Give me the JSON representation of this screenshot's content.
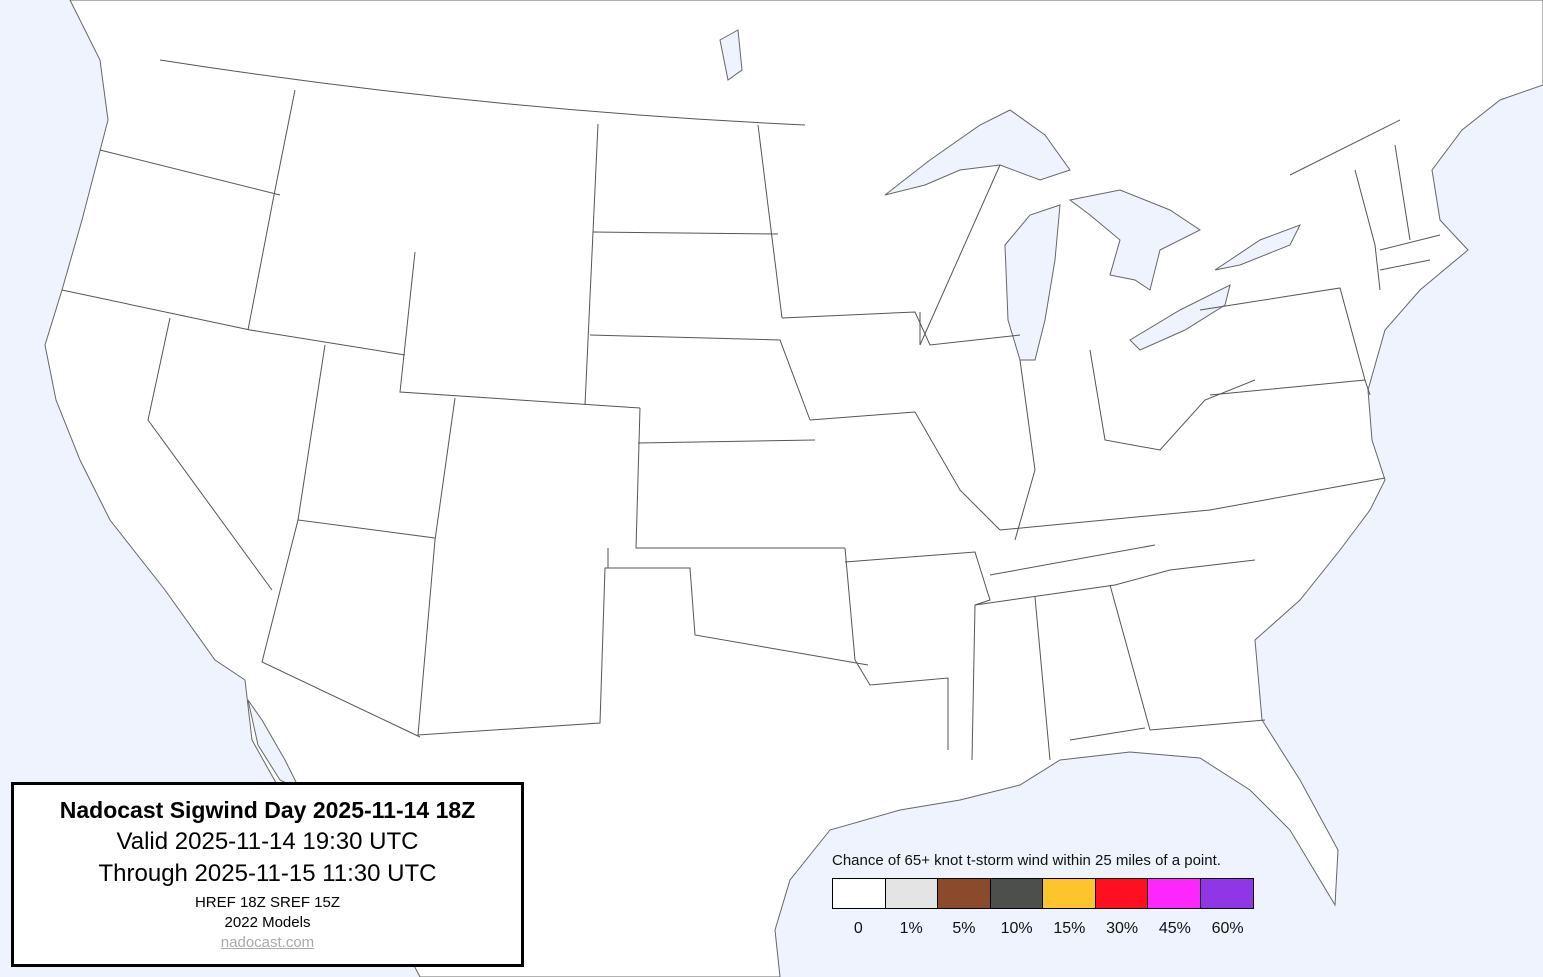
{
  "map": {
    "land_color": "#ffffff",
    "water_color": "#eef3fe",
    "border_color": "#555555"
  },
  "info": {
    "title": "Nadocast Sigwind Day 2025-11-14 18Z",
    "valid": "Valid 2025-11-14 19:30 UTC",
    "through": "Through 2025-11-15 11:30 UTC",
    "models": "HREF 18Z SREF 15Z",
    "model_version": "2022 Models",
    "site": "nadocast.com"
  },
  "legend": {
    "caption": "Chance of 65+ knot t-storm wind within 25 miles of a point.",
    "items": [
      {
        "label": "0",
        "color": "#ffffff"
      },
      {
        "label": "1%",
        "color": "#e4e4e4"
      },
      {
        "label": "5%",
        "color": "#8b4a2b"
      },
      {
        "label": "10%",
        "color": "#4d4f4d"
      },
      {
        "label": "15%",
        "color": "#fdc42e"
      },
      {
        "label": "30%",
        "color": "#ff1020"
      },
      {
        "label": "45%",
        "color": "#fd26fd"
      },
      {
        "label": "60%",
        "color": "#9136e6"
      }
    ]
  }
}
